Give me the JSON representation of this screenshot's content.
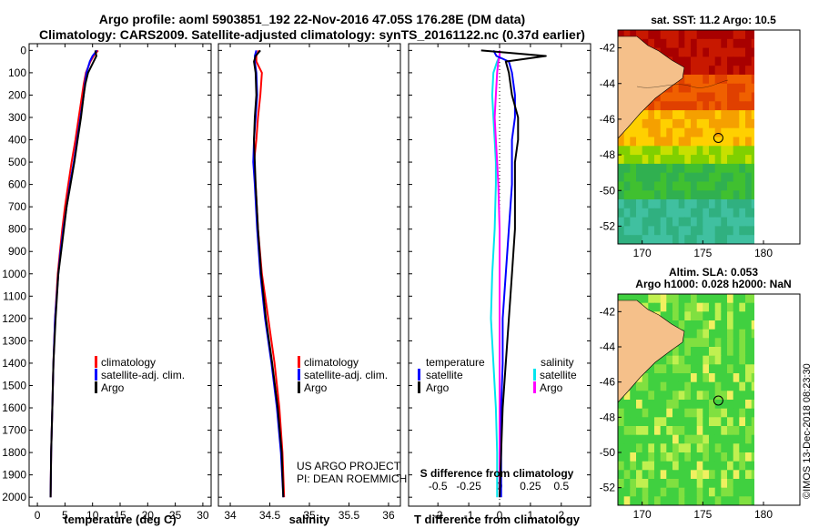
{
  "header": {
    "title_line1": "Argo profile: aoml 5903851_192 22-Nov-2016 47.05S 176.28E (DM data)",
    "title_line2": "Climatology: CARS2009. Satellite-adjusted climatology: synTS_20161122.nc (0.37d earlier)"
  },
  "colors": {
    "climatology": "#ff0000",
    "satellite": "#0000ff",
    "argo": "#000000",
    "salinity_satellite": "#00e5ee",
    "salinity_argo": "#ff00ff",
    "land": "#f5c08a"
  },
  "depth_axis": {
    "ticks": [
      "0",
      "100",
      "200",
      "300",
      "400",
      "500",
      "600",
      "700",
      "800",
      "900",
      "1000",
      "1100",
      "1200",
      "1300",
      "1400",
      "1500",
      "1600",
      "1700",
      "1800",
      "1900",
      "2000"
    ]
  },
  "legend": {
    "climatology": "climatology",
    "satellite_adj": "satellite-adj. clim.",
    "argo": "Argo",
    "temperature_head": "temperature",
    "salinity_head": "salinity",
    "satellite": "satellite"
  },
  "credits": {
    "line1": "US ARGO PROJECT",
    "line2": "PI: DEAN ROEMMICH"
  },
  "side_labels": {
    "sst": "sat. SST: 11.2 Argo: 10.5",
    "sla": "Altim. SLA: 0.053",
    "h1000": "Argo h1000: 0.028 h2000: NaN",
    "stamp": "©IMOS 13-Dec-2018 08:23:30"
  },
  "chart_data": [
    {
      "type": "line",
      "name": "temperature",
      "xlabel": "temperature (deg C)",
      "ylabel": "depth (dbar)",
      "xlim": [
        -1.5,
        31.5
      ],
      "ylim": [
        2040,
        -30
      ],
      "xticks": [
        0,
        5,
        10,
        15,
        20,
        25,
        30
      ],
      "xtick_labels": [
        "0",
        "5",
        "10",
        "15",
        "20",
        "25",
        "30"
      ],
      "depth": [
        0,
        25,
        50,
        100,
        150,
        200,
        300,
        400,
        500,
        600,
        700,
        800,
        900,
        1000,
        1200,
        1400,
        1600,
        1800,
        2000
      ],
      "series": [
        {
          "name": "climatology",
          "values": [
            11.0,
            10.2,
            9.6,
            8.8,
            8.4,
            8.1,
            7.5,
            6.9,
            6.2,
            5.6,
            5.0,
            4.5,
            4.1,
            3.7,
            3.2,
            2.9,
            2.7,
            2.5,
            2.4
          ]
        },
        {
          "name": "satellite-adj. clim.",
          "values": [
            10.8,
            10.0,
            9.5,
            8.9,
            8.6,
            8.4,
            7.8,
            7.2,
            6.6,
            5.9,
            5.3,
            4.7,
            4.2,
            3.8,
            3.2,
            2.9,
            2.7,
            2.5,
            2.4
          ]
        },
        {
          "name": "Argo",
          "values": [
            10.5,
            10.7,
            10.2,
            9.2,
            8.7,
            8.4,
            7.9,
            7.3,
            6.7,
            6.0,
            5.3,
            4.8,
            4.3,
            3.8,
            3.3,
            2.9,
            2.7,
            2.5,
            2.4
          ]
        }
      ]
    },
    {
      "type": "line",
      "name": "salinity",
      "xlabel": "salinity",
      "ylim": [
        2040,
        -30
      ],
      "xlim": [
        33.85,
        36.15
      ],
      "xticks": [
        34,
        34.5,
        35,
        35.5,
        36
      ],
      "xtick_labels": [
        "34",
        "34.5",
        "35",
        "35.5",
        "36"
      ],
      "depth": [
        0,
        25,
        50,
        100,
        200,
        300,
        400,
        500,
        600,
        800,
        1000,
        1200,
        1400,
        1600,
        1800,
        2000
      ],
      "series": [
        {
          "name": "climatology",
          "values": [
            34.36,
            34.33,
            34.33,
            34.4,
            34.38,
            34.35,
            34.33,
            34.3,
            34.32,
            34.35,
            34.4,
            34.48,
            34.56,
            34.62,
            34.66,
            34.68
          ]
        },
        {
          "name": "satellite-adj. clim.",
          "values": [
            34.33,
            34.31,
            34.31,
            34.33,
            34.34,
            34.32,
            34.3,
            34.29,
            34.31,
            34.34,
            34.38,
            34.44,
            34.52,
            34.59,
            34.64,
            34.67
          ]
        },
        {
          "name": "Argo",
          "values": [
            34.38,
            34.32,
            34.3,
            34.32,
            34.33,
            34.31,
            34.3,
            34.31,
            34.32,
            34.35,
            34.39,
            34.45,
            34.53,
            34.6,
            34.65,
            34.67
          ]
        }
      ]
    },
    {
      "type": "line",
      "name": "difference",
      "xlabel": "T difference from climatology",
      "x2label": "S difference from climatology",
      "ylim": [
        2040,
        -30
      ],
      "xlim": [
        -2.95,
        2.95
      ],
      "xticks": [
        -2,
        -1,
        0,
        1,
        2
      ],
      "xtick_labels": [
        "-2",
        "-1",
        "0",
        "1",
        "2"
      ],
      "s_ticks": [
        -0.5,
        -0.25,
        0,
        0.25,
        0.5
      ],
      "s_tick_labels": [
        "-0.5",
        "-0.25",
        "0",
        "0.25",
        "0.5"
      ],
      "s_scale": 4,
      "depth": [
        0,
        25,
        50,
        100,
        200,
        300,
        400,
        500,
        600,
        800,
        1000,
        1200,
        1400,
        1600,
        1800,
        2000
      ],
      "series": [
        {
          "name": "T satellite",
          "group": "temperature",
          "values": [
            -0.2,
            -0.1,
            0.3,
            0.4,
            0.5,
            0.5,
            0.4,
            0.4,
            0.4,
            0.3,
            0.2,
            0.1,
            0.1,
            0.05,
            0.05,
            0.05
          ]
        },
        {
          "name": "T Argo",
          "group": "temperature",
          "values": [
            -0.6,
            1.5,
            0.2,
            0.3,
            0.4,
            0.6,
            0.6,
            0.5,
            0.5,
            0.5,
            0.4,
            0.3,
            0.2,
            0.1,
            0.05,
            0.0
          ]
        },
        {
          "name": "S satellite",
          "group": "salinity",
          "values": [
            0.0,
            0.0,
            -0.02,
            -0.05,
            -0.06,
            -0.05,
            -0.04,
            -0.03,
            -0.03,
            -0.04,
            -0.06,
            -0.07,
            -0.05,
            -0.03,
            -0.02,
            -0.02
          ]
        },
        {
          "name": "S Argo",
          "group": "salinity",
          "values": [
            0.0,
            0.0,
            -0.01,
            -0.02,
            -0.03,
            -0.04,
            -0.03,
            -0.02,
            -0.01,
            0.0,
            0.0,
            0.0,
            0.0,
            0.0,
            0.0,
            0.0
          ]
        }
      ]
    },
    {
      "type": "heatmap",
      "name": "sst_map",
      "xlim": [
        168,
        183
      ],
      "ylim": [
        -53,
        -41
      ],
      "xticks": [
        170,
        175,
        180
      ],
      "xtick_labels": [
        "170",
        "175",
        "180"
      ],
      "yticks": [
        -42,
        -44,
        -46,
        -48,
        -50,
        -52
      ],
      "ytick_labels": [
        "-42",
        "-44",
        "-46",
        "-48",
        "-50",
        "-52"
      ],
      "data_lon_max": 180,
      "float_position": [
        176.28,
        -47.05
      ]
    },
    {
      "type": "heatmap",
      "name": "sla_map",
      "xlim": [
        168,
        183
      ],
      "ylim": [
        -53,
        -41
      ],
      "xticks": [
        170,
        175,
        180
      ],
      "xtick_labels": [
        "170",
        "175",
        "180"
      ],
      "yticks": [
        -42,
        -44,
        -46,
        -48,
        -50,
        -52
      ],
      "ytick_labels": [
        "-42",
        "-44",
        "-46",
        "-48",
        "-50",
        "-52"
      ],
      "data_lon_max": 180,
      "float_position": [
        176.28,
        -47.05
      ]
    }
  ]
}
